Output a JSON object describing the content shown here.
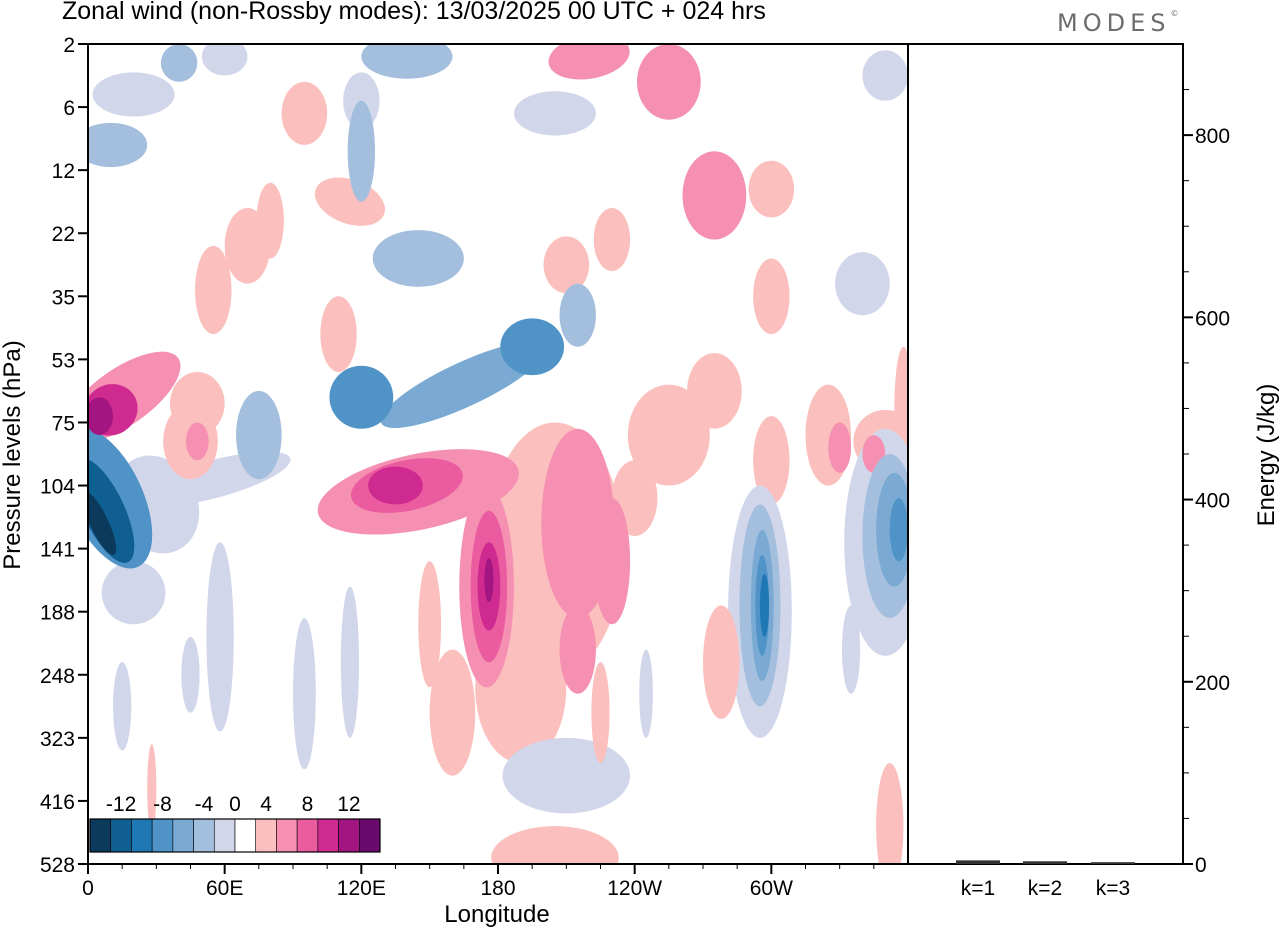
{
  "title": "Zonal wind (non-Rossby modes):  13/03/2025  00 UTC  + 024 hrs",
  "logo_text": "MODES",
  "logo_mark": "©",
  "chart_data": [
    {
      "type": "heatmap",
      "title": "Zonal wind (non-Rossby modes):  13/03/2025  00 UTC  + 024 hrs",
      "xlabel": "Longitude",
      "ylabel": "Pressure levels (hPa)",
      "x_ticks": [
        "0",
        "60E",
        "120E",
        "180",
        "120W",
        "60W"
      ],
      "x_tick_degrees": [
        0,
        60,
        120,
        180,
        240,
        300
      ],
      "xlim": [
        0,
        360
      ],
      "y_ticks": [
        "2",
        "6",
        "12",
        "22",
        "35",
        "53",
        "75",
        "104",
        "141",
        "188",
        "248",
        "323",
        "416",
        "528"
      ],
      "colorbar": {
        "labels": [
          "-12",
          "-8",
          "-4",
          "0",
          "4",
          "8",
          "12"
        ],
        "levels": [
          -14,
          -12,
          -10,
          -8,
          -6,
          -4,
          -2,
          2,
          4,
          6,
          8,
          10,
          12,
          14
        ],
        "colors": [
          "#0b3a5c",
          "#0f5f93",
          "#1f78b4",
          "#4f93c7",
          "#7aaad4",
          "#a3bfdd",
          "#d2d6ea",
          "#ffffff",
          "#fbc0bd",
          "#f590b2",
          "#ea5b9f",
          "#cf2a8f",
          "#a31681",
          "#6a0a6f"
        ]
      },
      "features": [
        {
          "name": "negative core near 0-10E",
          "lon": 8,
          "level_index": 7.5,
          "value": -12
        },
        {
          "name": "positive core near 180",
          "lon": 176,
          "level_index": 8.6,
          "value": 10
        },
        {
          "name": "negative core near 65W",
          "lon": 295,
          "level_index": 8.9,
          "value": -10
        },
        {
          "name": "negative core near 5-10W",
          "lon": 352,
          "level_index": 7.7,
          "value": -10
        },
        {
          "name": "positive band near 130E-160E",
          "lon": 140,
          "level_index": 7.0,
          "value": 8
        },
        {
          "name": "negative band rising 110E-200E",
          "lon": 160,
          "level_index": 5.6,
          "value": -6
        },
        {
          "name": "positive core near 5E upper",
          "lon": 8,
          "level_index": 6.0,
          "value": 8
        }
      ]
    },
    {
      "type": "bar",
      "categories": [
        "k=1",
        "k=2",
        "k=3"
      ],
      "values": [
        4,
        3,
        2
      ],
      "ylabel": "Energy (J/kg)",
      "ylim": [
        0,
        900
      ],
      "y_ticks": [
        "0",
        "200",
        "400",
        "600",
        "800"
      ]
    }
  ]
}
